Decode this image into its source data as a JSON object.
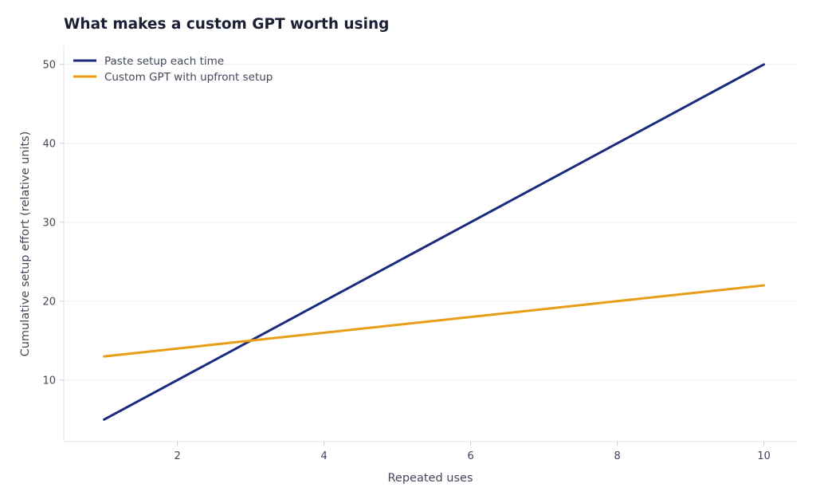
{
  "chart_data": {
    "type": "line",
    "title": "What makes a custom GPT worth using",
    "xlabel": "Repeated uses",
    "ylabel": "Cumulative setup effort (relative units)",
    "x": [
      1,
      2,
      3,
      4,
      5,
      6,
      7,
      8,
      9,
      10
    ],
    "xlim": [
      0.45,
      10.45
    ],
    "ylim": [
      2.2,
      52.4
    ],
    "xticks": [
      2,
      4,
      6,
      8,
      10
    ],
    "yticks": [
      10,
      20,
      30,
      40,
      50
    ],
    "grid": "horizontal",
    "legend_position": "top-left",
    "series": [
      {
        "name": "Paste setup each time",
        "color": "#1c2a7e",
        "values": [
          5,
          10,
          15,
          20,
          25,
          30,
          35,
          40,
          45,
          50
        ]
      },
      {
        "name": "Custom GPT with upfront setup",
        "color": "#e89e16",
        "values": [
          13,
          14,
          15,
          16,
          17,
          18,
          19,
          20,
          21,
          22
        ]
      }
    ]
  }
}
